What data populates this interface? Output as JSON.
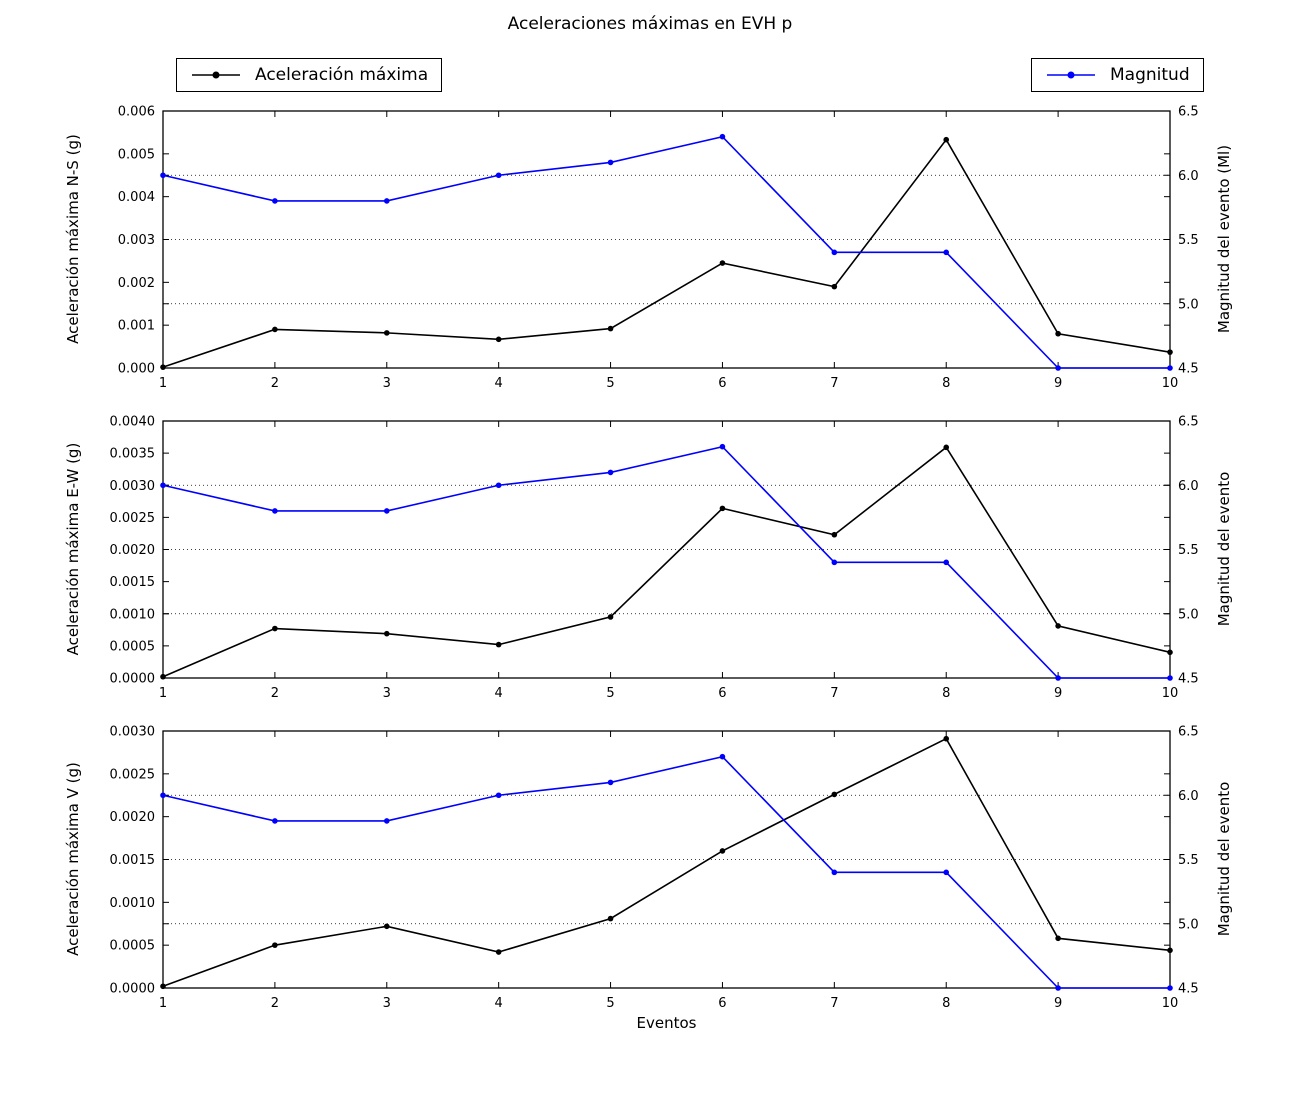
{
  "title": "Aceleraciones máximas en EVH p",
  "xlabel": "Eventos",
  "legend": [
    {
      "label": "Aceleración máxima",
      "color": "#000000"
    },
    {
      "label": "Magnitud",
      "color": "#0000ff"
    }
  ],
  "colors": {
    "acceleration": "#000000",
    "magnitude": "#0000ff",
    "background": "#ffffff",
    "grid": "#000000"
  },
  "chart_data": [
    {
      "type": "line",
      "x": [
        1,
        2,
        3,
        4,
        5,
        6,
        7,
        8,
        9,
        10
      ],
      "x_tick_labels": [
        "1",
        "2",
        "3",
        "4",
        "5",
        "6",
        "7",
        "8",
        "9",
        "10"
      ],
      "left_axis": {
        "label": "Aceleración máxima N-S (g)",
        "min": 0,
        "max": 0.006,
        "tick_values": [
          0,
          0.001,
          0.002,
          0.003,
          0.004,
          0.005,
          0.006
        ],
        "tick_labels": [
          "0.000",
          "0.001",
          "0.002",
          "0.003",
          "0.004",
          "0.005",
          "0.006"
        ]
      },
      "right_axis": {
        "label": "Magnitud del evento (Ml)",
        "min": 4.5,
        "max": 6.5,
        "tick_values": [
          4.5,
          5.0,
          5.5,
          6.0,
          6.5
        ],
        "tick_labels": [
          "4.5",
          "5.0",
          "5.5",
          "6.0",
          "6.5"
        ],
        "grid_ticks": [
          5.0,
          5.5,
          6.0
        ]
      },
      "series": [
        {
          "name": "Aceleración máxima",
          "axis": "left",
          "color": "#000000",
          "values": [
            2e-05,
            0.0009,
            0.00082,
            0.00067,
            0.00092,
            0.00245,
            0.0019,
            0.00533,
            0.0008,
            0.00037
          ]
        },
        {
          "name": "Magnitud",
          "axis": "right",
          "color": "#0000ff",
          "values": [
            6.0,
            5.8,
            5.8,
            6.0,
            6.1,
            6.3,
            5.4,
            5.4,
            4.5,
            4.5
          ]
        }
      ]
    },
    {
      "type": "line",
      "x": [
        1,
        2,
        3,
        4,
        5,
        6,
        7,
        8,
        9,
        10
      ],
      "x_tick_labels": [
        "1",
        "2",
        "3",
        "4",
        "5",
        "6",
        "7",
        "8",
        "9",
        "10"
      ],
      "left_axis": {
        "label": "Aceleración máxima E-W (g)",
        "min": 0,
        "max": 0.004,
        "tick_values": [
          0,
          0.0005,
          0.001,
          0.0015,
          0.002,
          0.0025,
          0.003,
          0.0035,
          0.004
        ],
        "tick_labels": [
          "0.0000",
          "0.0005",
          "0.0010",
          "0.0015",
          "0.0020",
          "0.0025",
          "0.0030",
          "0.0035",
          "0.0040"
        ]
      },
      "right_axis": {
        "label": "Magnitud del evento",
        "min": 4.5,
        "max": 6.5,
        "tick_values": [
          4.5,
          5.0,
          5.5,
          6.0,
          6.5
        ],
        "tick_labels": [
          "4.5",
          "5.0",
          "5.5",
          "6.0",
          "6.5"
        ],
        "grid_ticks": [
          5.0,
          5.5,
          6.0
        ]
      },
      "series": [
        {
          "name": "Aceleración máxima",
          "axis": "left",
          "color": "#000000",
          "values": [
            2e-05,
            0.00077,
            0.00069,
            0.00052,
            0.00095,
            0.00264,
            0.00223,
            0.00359,
            0.00081,
            0.0004
          ]
        },
        {
          "name": "Magnitud",
          "axis": "right",
          "color": "#0000ff",
          "values": [
            6.0,
            5.8,
            5.8,
            6.0,
            6.1,
            6.3,
            5.4,
            5.4,
            4.5,
            4.5
          ]
        }
      ]
    },
    {
      "type": "line",
      "x": [
        1,
        2,
        3,
        4,
        5,
        6,
        7,
        8,
        9,
        10
      ],
      "x_tick_labels": [
        "1",
        "2",
        "3",
        "4",
        "5",
        "6",
        "7",
        "8",
        "9",
        "10"
      ],
      "left_axis": {
        "label": "Aceleración máxima V (g)",
        "min": 0,
        "max": 0.003,
        "tick_values": [
          0,
          0.0005,
          0.001,
          0.0015,
          0.002,
          0.0025,
          0.003
        ],
        "tick_labels": [
          "0.0000",
          "0.0005",
          "0.0010",
          "0.0015",
          "0.0020",
          "0.0025",
          "0.0030"
        ]
      },
      "right_axis": {
        "label": "Magnitud del evento",
        "min": 4.5,
        "max": 6.5,
        "tick_values": [
          4.5,
          5.0,
          5.5,
          6.0,
          6.5
        ],
        "tick_labels": [
          "4.5",
          "5.0",
          "5.5",
          "6.0",
          "6.5"
        ],
        "grid_ticks": [
          5.0,
          5.5,
          6.0
        ]
      },
      "series": [
        {
          "name": "Aceleración máxima",
          "axis": "left",
          "color": "#000000",
          "values": [
            2e-05,
            0.0005,
            0.00072,
            0.00042,
            0.00081,
            0.0016,
            0.00226,
            0.00291,
            0.00058,
            0.00044
          ]
        },
        {
          "name": "Magnitud",
          "axis": "right",
          "color": "#0000ff",
          "values": [
            6.0,
            5.8,
            5.8,
            6.0,
            6.1,
            6.3,
            5.4,
            5.4,
            4.5,
            4.5
          ]
        }
      ]
    }
  ]
}
